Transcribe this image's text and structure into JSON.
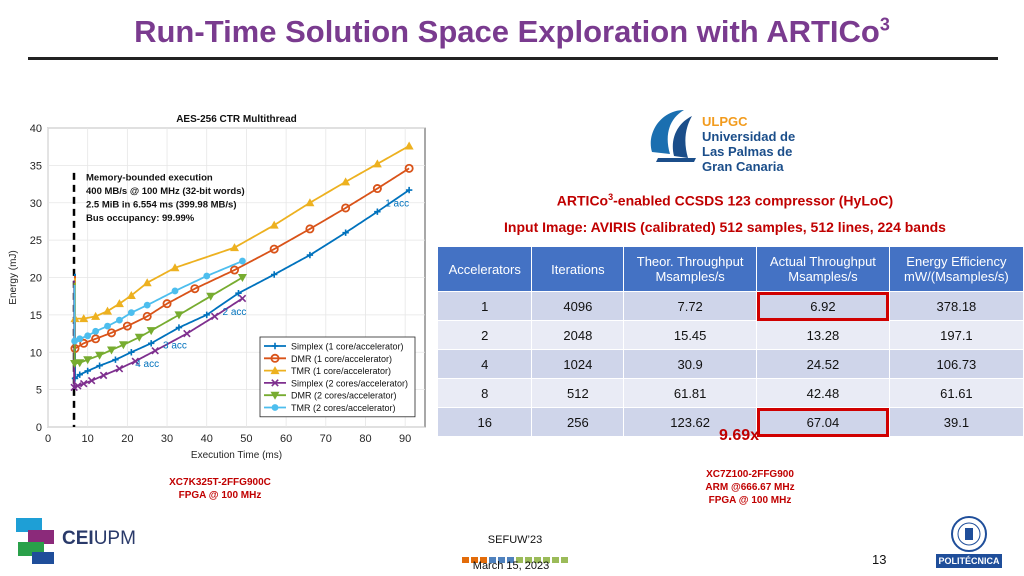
{
  "title": {
    "main": "Run-Time Solution Space Exploration with ARTICo",
    "sup": "3"
  },
  "ulpgc_logo": {
    "brand": "ULPGC",
    "lines": [
      "Universidad de",
      "Las Palmas de",
      "Gran Canaria"
    ]
  },
  "subtitle1": {
    "pre": "ARTICo",
    "sup": "3",
    "post": "-enabled CCSDS 123 compressor (HyLoC)"
  },
  "subtitle2": "Input Image: AVIRIS (calibrated) 512 samples, 512 lines, 224 bands",
  "table": {
    "headers": [
      [
        "Accelerators"
      ],
      [
        "Iterations"
      ],
      [
        "Theor. Throughput",
        "Msamples/s"
      ],
      [
        "Actual Throughput",
        "Msamples/s"
      ],
      [
        "Energy Efficiency",
        "mW/(Msamples/s)"
      ]
    ],
    "rows": [
      [
        "1",
        "4096",
        "7.72",
        "6.92",
        "378.18"
      ],
      [
        "2",
        "2048",
        "15.45",
        "13.28",
        "197.1"
      ],
      [
        "4",
        "1024",
        "30.9",
        "24.52",
        "106.73"
      ],
      [
        "8",
        "512",
        "61.81",
        "42.48",
        "61.61"
      ],
      [
        "16",
        "256",
        "123.62",
        "67.04",
        "39.1"
      ]
    ]
  },
  "speedup": "9.69x",
  "fpga_left": {
    "line1": "XC7K325T-2FFG900C",
    "line2": "FPGA @ 100 MHz"
  },
  "fpga_right": {
    "line1": "XC7Z100-2FFG900",
    "line2": "ARM @666.67 MHz",
    "line3": "FPGA @ 100 MHz"
  },
  "footer": {
    "conference": "SEFUW’23",
    "date": "March 15, 2023",
    "page": "13",
    "cei_text_bold": "CEI",
    "cei_text": "UPM",
    "upm_band": "POLITÉCNICA",
    "squares": [
      "#e36c0a",
      "#e36c0a",
      "#e36c0a",
      "#4f81bd",
      "#4f81bd",
      "#4f81bd",
      "#9bbb59",
      "#9bbb59",
      "#9bbb59",
      "#9bbb59",
      "#9bbb59",
      "#9bbb59"
    ]
  },
  "chart_data": {
    "type": "line",
    "title": "AES-256 CTR Multithread",
    "xlabel": "Execution Time (ms)",
    "ylabel": "Energy (mJ)",
    "xlim": [
      0,
      95
    ],
    "ylim": [
      0,
      40
    ],
    "xticks": [
      0,
      10,
      20,
      30,
      40,
      50,
      60,
      70,
      80,
      90
    ],
    "yticks": [
      0,
      5,
      10,
      15,
      20,
      25,
      30,
      35,
      40
    ],
    "grid": true,
    "legend_position": "bottom-right",
    "memory_bound_x": 6.554,
    "annotation_box": [
      "Memory-bounded execution",
      "400 MB/s @ 100 MHz (32-bit words)",
      "2.5 MiB in 6.554 ms (399.98 MB/s)",
      "Bus occupancy: 99.99%"
    ],
    "labels": [
      {
        "text": "1 acc",
        "x": 91,
        "y": 29.5
      },
      {
        "text": "2 acc",
        "x": 50,
        "y": 15
      },
      {
        "text": "3 acc",
        "x": 35,
        "y": 10.5
      },
      {
        "text": "4 acc",
        "x": 28,
        "y": 8
      }
    ],
    "series": [
      {
        "name": "Simplex (1 core/accelerator)",
        "color": "#0072bd",
        "marker": "plus",
        "x": [
          6.8,
          8,
          10,
          13,
          17,
          21,
          26,
          33,
          40,
          48,
          57,
          66,
          75,
          83,
          91
        ],
        "y": [
          6.5,
          7,
          7.5,
          8.2,
          9,
          10,
          11.2,
          13.3,
          15,
          17.9,
          20.4,
          23,
          26,
          28.8,
          31.7
        ]
      },
      {
        "name": "DMR (1 core/accelerator)",
        "color": "#d95319",
        "marker": "circle",
        "x": [
          6.8,
          9,
          12,
          16,
          20,
          25,
          30,
          37,
          47,
          57,
          66,
          75,
          83,
          91
        ],
        "y": [
          10.5,
          11.2,
          11.8,
          12.6,
          13.5,
          14.8,
          16.5,
          18.5,
          21,
          23.8,
          26.5,
          29.3,
          31.9,
          34.6
        ]
      },
      {
        "name": "TMR (1 core/accelerator)",
        "color": "#edb120",
        "marker": "triangle",
        "x": [
          6.8,
          9,
          12,
          15,
          18,
          21,
          25,
          32,
          47,
          57,
          66,
          75,
          83,
          91
        ],
        "y": [
          14.5,
          14.5,
          14.8,
          15.5,
          16.5,
          17.6,
          19.3,
          21.3,
          24,
          27,
          30,
          32.8,
          35.2,
          37.6
        ]
      },
      {
        "name": "Simplex (2 cores/accelerator)",
        "color": "#7e2f8e",
        "marker": "x",
        "x": [
          6.6,
          7.5,
          9,
          11,
          14,
          18,
          22,
          27,
          35,
          42,
          49
        ],
        "y": [
          5.3,
          5.5,
          5.8,
          6.2,
          6.9,
          7.8,
          8.8,
          10.2,
          12.5,
          14.8,
          17.2
        ]
      },
      {
        "name": "DMR (2 cores/accelerator)",
        "color": "#77ac30",
        "marker": "triangle-down",
        "x": [
          6.7,
          8,
          10,
          13,
          16,
          19,
          23,
          26,
          33,
          41,
          49
        ],
        "y": [
          8.5,
          8.6,
          9,
          9.6,
          10.3,
          11,
          12,
          12.9,
          15,
          17.5,
          20
        ]
      },
      {
        "name": "TMR (2 cores/accelerator)",
        "color": "#4dbeee",
        "marker": "dot",
        "x": [
          6.7,
          8,
          10,
          12,
          15,
          18,
          21,
          25,
          32,
          40,
          49
        ],
        "y": [
          11.5,
          11.8,
          12.2,
          12.8,
          13.5,
          14.3,
          15.3,
          16.3,
          18.2,
          20.2,
          22.2
        ]
      }
    ]
  }
}
